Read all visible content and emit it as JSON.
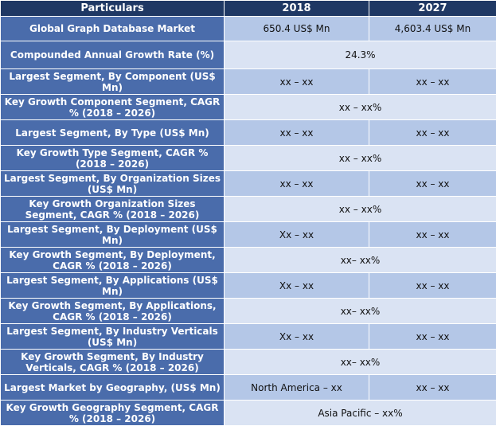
{
  "table": {
    "header": [
      "Particulars",
      "2018",
      "2027"
    ],
    "rows": [
      [
        "Global Graph Database Market",
        "650.4 US$ Mn",
        "4,603.4 US$ Mn"
      ],
      [
        "Compounded Annual Growth Rate (%)",
        "24.3%"
      ],
      [
        "Largest Segment, By Component (US$ Mn)",
        "xx – xx",
        "xx – xx"
      ],
      [
        "Key Growth Component Segment, CAGR % (2018 – 2026)",
        "xx – xx%"
      ],
      [
        "Largest Segment, By Type (US$ Mn)",
        "xx – xx",
        "xx – xx"
      ],
      [
        "Key Growth Type Segment, CAGR % (2018 – 2026)",
        "xx – xx%"
      ],
      [
        "Largest Segment, By Organization Sizes (US$ Mn)",
        "xx – xx",
        "xx – xx"
      ],
      [
        "Key Growth Organization Sizes Segment, CAGR % (2018 – 2026)",
        "xx – xx%"
      ],
      [
        "Largest Segment, By Deployment (US$ Mn)",
        "Xx – xx",
        "xx – xx"
      ],
      [
        "Key Growth Segment, By Deployment, CAGR % (2018 – 2026)",
        "xx– xx%"
      ],
      [
        "Largest Segment, By Applications (US$ Mn)",
        "Xx – xx",
        "xx – xx"
      ],
      [
        "Key Growth Segment, By Applications, CAGR % (2018 – 2026)",
        "xx– xx%"
      ],
      [
        "Largest Segment, By Industry Verticals (US$ Mn)",
        "Xx – xx",
        "xx – xx"
      ],
      [
        "Key Growth Segment, By Industry Verticals, CAGR % (2018 – 2026)",
        "xx– xx%"
      ],
      [
        "Largest Market by Geography, (US$ Mn)",
        "North America – xx",
        "xx – xx"
      ],
      [
        "Key Growth Geography Segment, CAGR % (2018 – 2026)",
        "Asia Pacific – xx%"
      ]
    ]
  }
}
